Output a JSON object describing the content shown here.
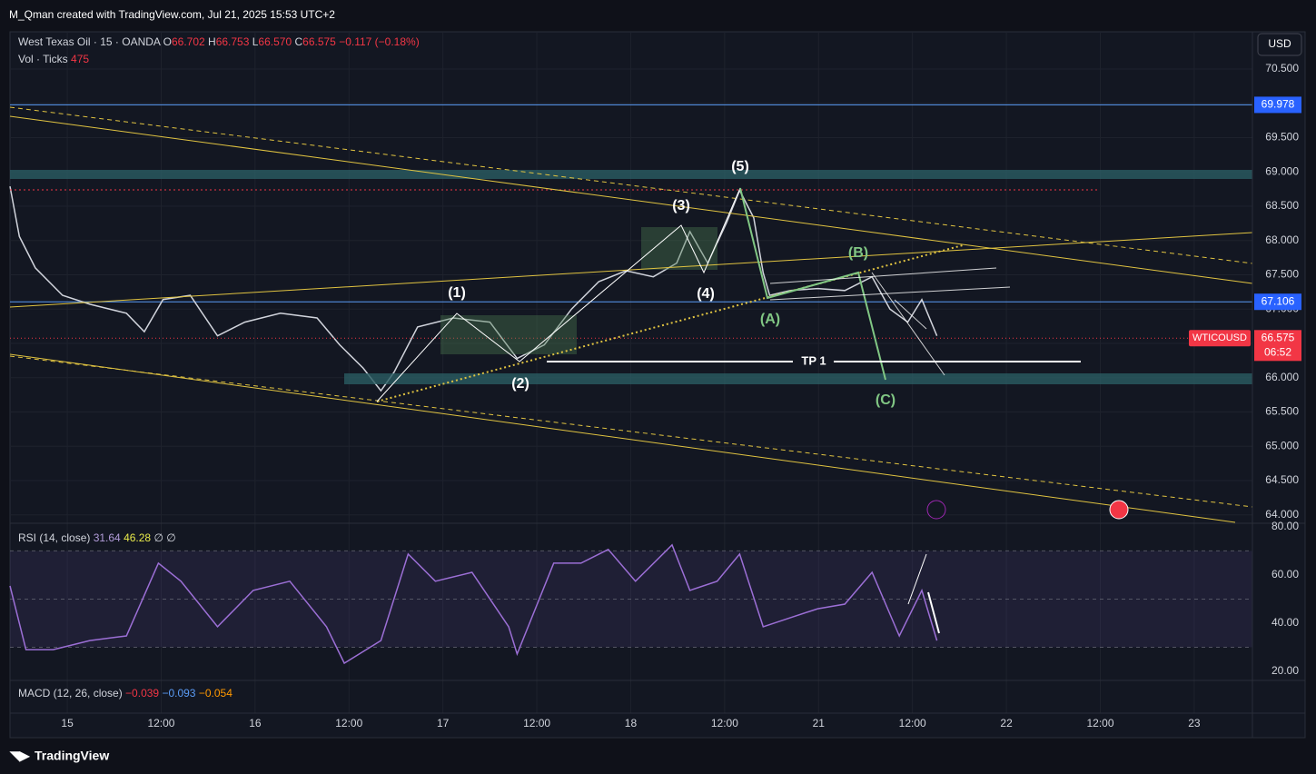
{
  "header": {
    "credit": "M_Qman created with TradingView.com, Jul 21, 2025 15:53 UTC+2"
  },
  "legend": {
    "symbol": "West Texas Oil · 15 · OANDA",
    "ohlc": [
      {
        "key": "O",
        "value": "66.702"
      },
      {
        "key": "H",
        "value": "66.753"
      },
      {
        "key": "L",
        "value": "66.570"
      },
      {
        "key": "C",
        "value": "66.575"
      }
    ],
    "change": "−0.117 (−0.18%)",
    "volume": {
      "name": "Vol · Ticks",
      "value": "475"
    },
    "rsi": {
      "name": "RSI (14, close)",
      "values": [
        "31.64",
        "46.28",
        "∅",
        "∅"
      ]
    },
    "macd": {
      "name": "MACD (12, 26, close)",
      "values": [
        "−0.039",
        "−0.093",
        "−0.054"
      ]
    }
  },
  "currency": "USD",
  "annotations": {
    "waves": [
      "(1)",
      "(2)",
      "(3)",
      "(4)",
      "(5)",
      "(A)",
      "(B)",
      "(C)"
    ],
    "target": "TP 1"
  },
  "footer": {
    "brand": "TradingView"
  },
  "chart_data": [
    {
      "type": "line",
      "color": "#d1d4dc",
      "x": [
        -0.61,
        -0.51,
        -0.34,
        -0.05,
        0.24,
        0.63,
        0.82,
        1.02,
        1.31,
        1.6,
        1.89,
        2.27,
        2.66,
        2.9,
        3.15,
        3.34,
        3.48,
        3.73,
        4.11,
        4.5,
        4.79,
        5.08,
        5.37,
        5.66,
        5.95,
        6.24,
        6.49,
        6.63,
        6.82,
        7.02,
        7.16,
        7.31,
        7.41,
        7.48,
        7.7,
        7.99,
        8.28,
        8.57,
        8.76,
        8.95,
        9.1,
        9.26
      ],
      "series": [
        {
          "name": "WTICOUSD",
          "color": "#d1d4dc",
          "values": [
            68.79,
            68.06,
            67.6,
            67.2,
            67.07,
            66.94,
            66.67,
            67.14,
            67.2,
            66.61,
            66.81,
            66.94,
            66.87,
            66.48,
            66.14,
            65.81,
            66.08,
            66.74,
            66.87,
            66.81,
            66.28,
            66.48,
            67.0,
            67.4,
            67.56,
            67.47,
            67.67,
            68.13,
            67.67,
            68.26,
            68.73,
            68.33,
            67.53,
            67.2,
            67.27,
            67.3,
            67.27,
            67.47,
            67.0,
            66.81,
            67.14,
            66.61
          ]
        }
      ],
      "xlim": [
        -0.61,
        12.62
      ],
      "xticks": [
        {
          "value": 0,
          "label": "15"
        },
        {
          "value": 1,
          "label": "12:00"
        },
        {
          "value": 2,
          "label": "16"
        },
        {
          "value": 3,
          "label": "12:00"
        },
        {
          "value": 4,
          "label": "17"
        },
        {
          "value": 5,
          "label": "12:00"
        },
        {
          "value": 6,
          "label": "18"
        },
        {
          "value": 7,
          "label": "12:00"
        },
        {
          "value": 8,
          "label": "21"
        },
        {
          "value": 9,
          "label": "12:00"
        },
        {
          "value": 10,
          "label": "22"
        },
        {
          "value": 11,
          "label": "12:00"
        },
        {
          "value": 12,
          "label": "23"
        }
      ],
      "ylim": [
        63.89,
        71.03
      ],
      "yticks": [
        {
          "value": 64,
          "label": "64.000"
        },
        {
          "value": 64.5,
          "label": "64.500"
        },
        {
          "value": 65,
          "label": "65.000"
        },
        {
          "value": 65.5,
          "label": "65.500"
        },
        {
          "value": 66,
          "label": "66.000"
        },
        {
          "value": 66.5,
          "label": "66.500"
        },
        {
          "value": 67,
          "label": "67.000"
        },
        {
          "value": 67.5,
          "label": "67.500"
        },
        {
          "value": 68,
          "label": "68.000"
        },
        {
          "value": 68.5,
          "label": "68.500"
        },
        {
          "value": 69,
          "label": "69.000"
        },
        {
          "value": 69.5,
          "label": "69.500"
        },
        {
          "value": 70,
          "label": "70.000"
        },
        {
          "value": 70.5,
          "label": "70.500"
        }
      ],
      "grid": true,
      "horizontal_lines": [
        {
          "value": 69.978,
          "color": "#5b9cf6"
        },
        {
          "value": 67.106,
          "color": "#5b9cf6"
        }
      ],
      "last_price": {
        "value": 66.575,
        "symbol": "WTICOUSD",
        "countdown": "06:52",
        "color": "#f23645"
      }
    },
    {
      "type": "line",
      "name": "RSI",
      "x": [
        -0.61,
        -0.44,
        -0.15,
        0.24,
        0.63,
        0.97,
        1.21,
        1.6,
        1.98,
        2.37,
        2.76,
        2.95,
        3.34,
        3.63,
        3.92,
        4.31,
        4.7,
        4.79,
        5.18,
        5.47,
        5.76,
        6.05,
        6.44,
        6.63,
        6.92,
        7.16,
        7.41,
        7.7,
        7.99,
        8.28,
        8.57,
        8.86,
        9.1,
        9.26
      ],
      "series": [
        {
          "name": "RSI",
          "color": "#9c6fd6",
          "values": [
            55.5,
            29,
            29,
            32.8,
            34.7,
            64.9,
            57.4,
            38.5,
            53.6,
            57.4,
            38.5,
            23.4,
            32.8,
            68.7,
            57.4,
            61.1,
            38.5,
            27.2,
            64.9,
            64.9,
            70.6,
            57.4,
            72.5,
            53.6,
            57.4,
            68.7,
            38.5,
            42.3,
            46,
            47.9,
            61.1,
            34.7,
            53.6,
            32.8
          ]
        }
      ],
      "xlim": [
        -0.61,
        12.62
      ],
      "ylim": [
        16.6,
        81.1
      ],
      "yticks": [
        {
          "value": 20,
          "label": "20.00"
        },
        {
          "value": 40,
          "label": "40.00"
        },
        {
          "value": 60,
          "label": "60.00"
        },
        {
          "value": 80,
          "label": "80.00"
        }
      ],
      "levels": [
        70,
        50,
        30
      ]
    }
  ]
}
